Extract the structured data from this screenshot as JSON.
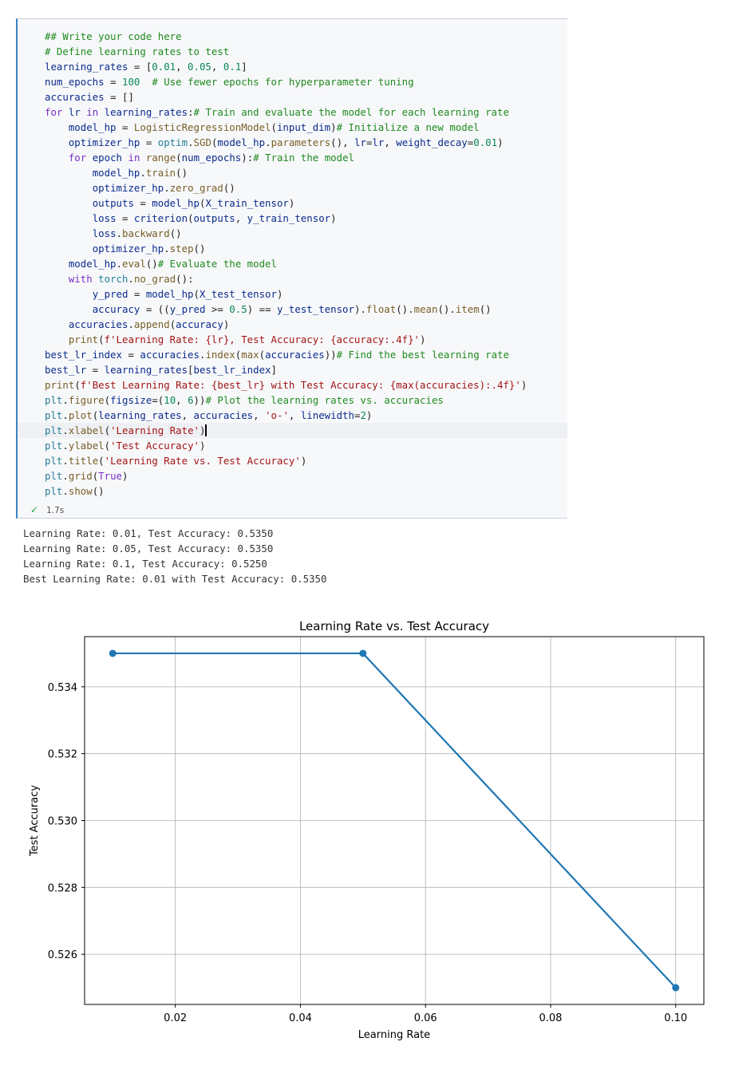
{
  "cell": {
    "code_lines": [
      "## Write your code here",
      "# Define learning rates to test",
      "learning_rates = [0.01, 0.05, 0.1]",
      "num_epochs = 100  # Use fewer epochs for hyperparameter tuning",
      "accuracies = []",
      "for lr in learning_rates:# Train and evaluate the model for each learning rate",
      "    model_hp = LogisticRegressionModel(input_dim)# Initialize a new model",
      "    optimizer_hp = optim.SGD(model_hp.parameters(), lr=lr, weight_decay=0.01)",
      "    for epoch in range(num_epochs):# Train the model",
      "        model_hp.train()",
      "        optimizer_hp.zero_grad()",
      "        outputs = model_hp(X_train_tensor)",
      "        loss = criterion(outputs, y_train_tensor)",
      "        loss.backward()",
      "        optimizer_hp.step()",
      "    model_hp.eval()# Evaluate the model",
      "    with torch.no_grad():",
      "        y_pred = model_hp(X_test_tensor)",
      "        accuracy = ((y_pred >= 0.5) == y_test_tensor).float().mean().item()",
      "    accuracies.append(accuracy)",
      "    print(f'Learning Rate: {lr}, Test Accuracy: {accuracy:.4f}')",
      "best_lr_index = accuracies.index(max(accuracies))# Find the best learning rate",
      "best_lr = learning_rates[best_lr_index]",
      "print(f'Best Learning Rate: {best_lr} with Test Accuracy: {max(accuracies):.4f}')",
      "plt.figure(figsize=(10, 6))# Plot the learning rates vs. accuracies",
      "plt.plot(learning_rates, accuracies, 'o-', linewidth=2)",
      "plt.xlabel('Learning Rate')",
      "plt.ylabel('Test Accuracy')",
      "plt.title('Learning Rate vs. Test Accuracy')",
      "plt.grid(True)",
      "plt.show()"
    ],
    "exec_time": "1.7s",
    "check_icon": "check-icon"
  },
  "output_lines": [
    "Learning Rate: 0.01, Test Accuracy: 0.5350",
    "Learning Rate: 0.05, Test Accuracy: 0.5350",
    "Learning Rate: 0.1, Test Accuracy: 0.5250",
    "Best Learning Rate: 0.01 with Test Accuracy: 0.5350"
  ],
  "chart_data": {
    "type": "line",
    "title": "Learning Rate vs. Test Accuracy",
    "xlabel": "Learning Rate",
    "ylabel": "Test Accuracy",
    "x": [
      0.01,
      0.05,
      0.1
    ],
    "series": [
      {
        "values": [
          0.535,
          0.535,
          0.525
        ],
        "color": "#1f77b4"
      }
    ],
    "xlim": [
      0.0055,
      0.1045
    ],
    "ylim": [
      0.5245,
      0.5355
    ],
    "xticks": [
      0.02,
      0.04,
      0.06,
      0.08,
      0.1
    ],
    "xtick_labels": [
      "0.02",
      "0.04",
      "0.06",
      "0.08",
      "0.10"
    ],
    "yticks": [
      0.526,
      0.528,
      0.53,
      0.532,
      0.534
    ],
    "ytick_labels": [
      "0.526",
      "0.528",
      "0.530",
      "0.532",
      "0.534"
    ],
    "grid": true,
    "marker": "o"
  }
}
